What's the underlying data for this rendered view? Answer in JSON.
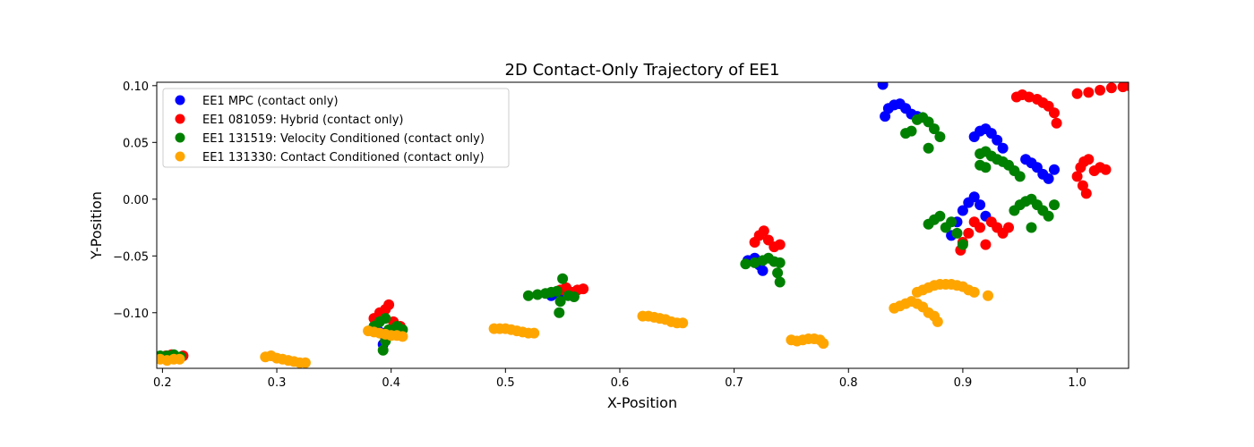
{
  "chart_data": {
    "type": "scatter",
    "title": "2D Contact-Only Trajectory of EE1",
    "xlabel": "X-Position",
    "ylabel": "Y-Position",
    "xlim": [
      0.195,
      1.045
    ],
    "ylim": [
      -0.149,
      0.103
    ],
    "xticks": [
      0.2,
      0.3,
      0.4,
      0.5,
      0.6,
      0.7,
      0.8,
      0.9,
      1.0
    ],
    "xtick_labels": [
      "0.2",
      "0.3",
      "0.4",
      "0.5",
      "0.6",
      "0.7",
      "0.8",
      "0.9",
      "1.0"
    ],
    "yticks": [
      -0.1,
      -0.05,
      0.0,
      0.05,
      0.1
    ],
    "ytick_labels": [
      "−0.10",
      "−0.05",
      "0.00",
      "0.05",
      "0.10"
    ],
    "grid": false,
    "legend_position": "top-left",
    "series": [
      {
        "name": "EE1 MPC (contact only)",
        "color": "#0000ff",
        "points": [
          [
            0.2,
            -0.139
          ],
          [
            0.205,
            -0.14
          ],
          [
            0.21,
            -0.138
          ],
          [
            0.215,
            -0.14
          ],
          [
            0.388,
            -0.115
          ],
          [
            0.392,
            -0.118
          ],
          [
            0.395,
            -0.122
          ],
          [
            0.393,
            -0.128
          ],
          [
            0.54,
            -0.085
          ],
          [
            0.545,
            -0.083
          ],
          [
            0.55,
            -0.084
          ],
          [
            0.555,
            -0.082
          ],
          [
            0.712,
            -0.054
          ],
          [
            0.718,
            -0.052
          ],
          [
            0.722,
            -0.058
          ],
          [
            0.725,
            -0.063
          ],
          [
            0.83,
            0.101
          ],
          [
            0.832,
            0.073
          ],
          [
            0.835,
            0.08
          ],
          [
            0.84,
            0.083
          ],
          [
            0.845,
            0.084
          ],
          [
            0.85,
            0.08
          ],
          [
            0.855,
            0.075
          ],
          [
            0.86,
            0.073
          ],
          [
            0.89,
            -0.032
          ],
          [
            0.895,
            -0.02
          ],
          [
            0.9,
            -0.01
          ],
          [
            0.905,
            -0.003
          ],
          [
            0.91,
            0.002
          ],
          [
            0.915,
            -0.005
          ],
          [
            0.92,
            -0.015
          ],
          [
            0.91,
            0.055
          ],
          [
            0.915,
            0.06
          ],
          [
            0.92,
            0.062
          ],
          [
            0.925,
            0.058
          ],
          [
            0.93,
            0.052
          ],
          [
            0.935,
            0.045
          ],
          [
            0.955,
            0.035
          ],
          [
            0.96,
            0.032
          ],
          [
            0.965,
            0.028
          ],
          [
            0.97,
            0.022
          ],
          [
            0.975,
            0.018
          ],
          [
            0.98,
            0.026
          ]
        ]
      },
      {
        "name": "EE1 081059: Hybrid (contact only)",
        "color": "#ff0000",
        "points": [
          [
            0.203,
            -0.138
          ],
          [
            0.208,
            -0.137
          ],
          [
            0.212,
            -0.139
          ],
          [
            0.218,
            -0.138
          ],
          [
            0.385,
            -0.105
          ],
          [
            0.39,
            -0.1
          ],
          [
            0.395,
            -0.097
          ],
          [
            0.398,
            -0.093
          ],
          [
            0.402,
            -0.108
          ],
          [
            0.408,
            -0.112
          ],
          [
            0.548,
            -0.08
          ],
          [
            0.553,
            -0.078
          ],
          [
            0.558,
            -0.082
          ],
          [
            0.563,
            -0.08
          ],
          [
            0.568,
            -0.079
          ],
          [
            0.718,
            -0.038
          ],
          [
            0.722,
            -0.032
          ],
          [
            0.726,
            -0.028
          ],
          [
            0.73,
            -0.036
          ],
          [
            0.735,
            -0.042
          ],
          [
            0.74,
            -0.04
          ],
          [
            0.898,
            -0.045
          ],
          [
            0.9,
            -0.038
          ],
          [
            0.905,
            -0.03
          ],
          [
            0.91,
            -0.02
          ],
          [
            0.915,
            -0.025
          ],
          [
            0.92,
            -0.04
          ],
          [
            0.925,
            -0.02
          ],
          [
            0.93,
            -0.025
          ],
          [
            0.935,
            -0.03
          ],
          [
            0.94,
            -0.025
          ],
          [
            0.947,
            0.09
          ],
          [
            0.952,
            0.092
          ],
          [
            0.958,
            0.09
          ],
          [
            0.965,
            0.088
          ],
          [
            0.97,
            0.085
          ],
          [
            0.975,
            0.082
          ],
          [
            0.98,
            0.076
          ],
          [
            0.982,
            0.067
          ],
          [
            1.0,
            0.02
          ],
          [
            1.003,
            0.028
          ],
          [
            1.006,
            0.033
          ],
          [
            1.01,
            0.035
          ],
          [
            1.005,
            0.012
          ],
          [
            1.008,
            0.005
          ],
          [
            1.015,
            0.025
          ],
          [
            1.02,
            0.028
          ],
          [
            1.025,
            0.026
          ],
          [
            1.0,
            0.093
          ],
          [
            1.01,
            0.094
          ],
          [
            1.02,
            0.096
          ],
          [
            1.03,
            0.098
          ],
          [
            1.04,
            0.099
          ],
          [
            1.045,
            0.1
          ]
        ]
      },
      {
        "name": "EE1 131519: Velocity Conditioned (contact only)",
        "color": "#008000",
        "points": [
          [
            0.198,
            -0.138
          ],
          [
            0.204,
            -0.138
          ],
          [
            0.21,
            -0.137
          ],
          [
            0.216,
            -0.139
          ],
          [
            0.385,
            -0.112
          ],
          [
            0.39,
            -0.108
          ],
          [
            0.395,
            -0.105
          ],
          [
            0.398,
            -0.115
          ],
          [
            0.395,
            -0.125
          ],
          [
            0.393,
            -0.133
          ],
          [
            0.405,
            -0.112
          ],
          [
            0.41,
            -0.115
          ],
          [
            0.52,
            -0.085
          ],
          [
            0.528,
            -0.084
          ],
          [
            0.535,
            -0.083
          ],
          [
            0.54,
            -0.082
          ],
          [
            0.545,
            -0.081
          ],
          [
            0.55,
            -0.07
          ],
          [
            0.548,
            -0.09
          ],
          [
            0.547,
            -0.1
          ],
          [
            0.555,
            -0.085
          ],
          [
            0.56,
            -0.086
          ],
          [
            0.71,
            -0.057
          ],
          [
            0.718,
            -0.056
          ],
          [
            0.725,
            -0.054
          ],
          [
            0.73,
            -0.052
          ],
          [
            0.735,
            -0.055
          ],
          [
            0.74,
            -0.056
          ],
          [
            0.738,
            -0.065
          ],
          [
            0.74,
            -0.073
          ],
          [
            0.86,
            0.07
          ],
          [
            0.865,
            0.072
          ],
          [
            0.87,
            0.068
          ],
          [
            0.875,
            0.062
          ],
          [
            0.88,
            0.055
          ],
          [
            0.855,
            0.06
          ],
          [
            0.85,
            0.058
          ],
          [
            0.87,
            0.045
          ],
          [
            0.87,
            -0.022
          ],
          [
            0.875,
            -0.018
          ],
          [
            0.88,
            -0.015
          ],
          [
            0.885,
            -0.025
          ],
          [
            0.89,
            -0.02
          ],
          [
            0.895,
            -0.03
          ],
          [
            0.9,
            -0.04
          ],
          [
            0.915,
            0.04
          ],
          [
            0.92,
            0.042
          ],
          [
            0.925,
            0.038
          ],
          [
            0.93,
            0.035
          ],
          [
            0.935,
            0.033
          ],
          [
            0.94,
            0.03
          ],
          [
            0.945,
            0.025
          ],
          [
            0.95,
            0.02
          ],
          [
            0.915,
            0.03
          ],
          [
            0.92,
            0.028
          ],
          [
            0.945,
            -0.01
          ],
          [
            0.95,
            -0.005
          ],
          [
            0.955,
            -0.002
          ],
          [
            0.96,
            0.0
          ],
          [
            0.965,
            -0.005
          ],
          [
            0.97,
            -0.01
          ],
          [
            0.975,
            -0.015
          ],
          [
            0.96,
            -0.025
          ],
          [
            0.98,
            -0.005
          ]
        ]
      },
      {
        "name": "EE1 131330: Contact Conditioned (contact only)",
        "color": "#ffa500",
        "points": [
          [
            0.198,
            -0.141
          ],
          [
            0.204,
            -0.142
          ],
          [
            0.21,
            -0.141
          ],
          [
            0.215,
            -0.141
          ],
          [
            0.29,
            -0.139
          ],
          [
            0.295,
            -0.138
          ],
          [
            0.3,
            -0.14
          ],
          [
            0.305,
            -0.141
          ],
          [
            0.31,
            -0.142
          ],
          [
            0.315,
            -0.143
          ],
          [
            0.32,
            -0.144
          ],
          [
            0.325,
            -0.144
          ],
          [
            0.38,
            -0.116
          ],
          [
            0.385,
            -0.117
          ],
          [
            0.39,
            -0.118
          ],
          [
            0.395,
            -0.119
          ],
          [
            0.4,
            -0.12
          ],
          [
            0.405,
            -0.12
          ],
          [
            0.41,
            -0.121
          ],
          [
            0.49,
            -0.114
          ],
          [
            0.495,
            -0.114
          ],
          [
            0.5,
            -0.114
          ],
          [
            0.505,
            -0.115
          ],
          [
            0.51,
            -0.116
          ],
          [
            0.515,
            -0.117
          ],
          [
            0.52,
            -0.118
          ],
          [
            0.525,
            -0.118
          ],
          [
            0.62,
            -0.103
          ],
          [
            0.625,
            -0.103
          ],
          [
            0.63,
            -0.104
          ],
          [
            0.635,
            -0.105
          ],
          [
            0.64,
            -0.106
          ],
          [
            0.645,
            -0.108
          ],
          [
            0.65,
            -0.109
          ],
          [
            0.655,
            -0.109
          ],
          [
            0.75,
            -0.124
          ],
          [
            0.755,
            -0.125
          ],
          [
            0.76,
            -0.124
          ],
          [
            0.765,
            -0.123
          ],
          [
            0.77,
            -0.123
          ],
          [
            0.775,
            -0.124
          ],
          [
            0.778,
            -0.127
          ],
          [
            0.84,
            -0.096
          ],
          [
            0.845,
            -0.094
          ],
          [
            0.85,
            -0.092
          ],
          [
            0.855,
            -0.09
          ],
          [
            0.86,
            -0.092
          ],
          [
            0.865,
            -0.095
          ],
          [
            0.87,
            -0.1
          ],
          [
            0.875,
            -0.103
          ],
          [
            0.878,
            -0.108
          ],
          [
            0.86,
            -0.082
          ],
          [
            0.865,
            -0.08
          ],
          [
            0.87,
            -0.078
          ],
          [
            0.875,
            -0.076
          ],
          [
            0.88,
            -0.075
          ],
          [
            0.885,
            -0.075
          ],
          [
            0.89,
            -0.075
          ],
          [
            0.895,
            -0.076
          ],
          [
            0.9,
            -0.077
          ],
          [
            0.905,
            -0.08
          ],
          [
            0.91,
            -0.082
          ],
          [
            0.922,
            -0.085
          ]
        ]
      }
    ]
  }
}
